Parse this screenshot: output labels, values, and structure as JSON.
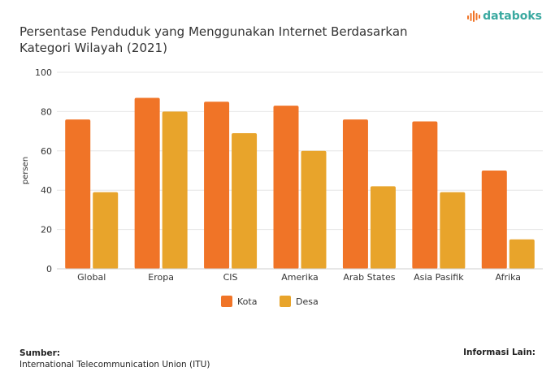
{
  "title": "Persentase Penduduk yang Menggunakan Internet Berdasarkan Kategori Wilayah (2021)",
  "logo": {
    "text": "databoks",
    "icon": "databoks-logo-icon",
    "color": "#3aa9a0"
  },
  "chart_data": {
    "type": "bar",
    "categories": [
      "Global",
      "Eropa",
      "CIS",
      "Amerika",
      "Arab States",
      "Asia Pasifik",
      "Afrika"
    ],
    "series": [
      {
        "name": "Kota",
        "values": [
          76,
          87,
          85,
          83,
          76,
          75,
          50
        ],
        "color": "#f07427"
      },
      {
        "name": "Desa",
        "values": [
          39,
          80,
          69,
          60,
          42,
          39,
          15
        ],
        "color": "#e8a42b"
      }
    ],
    "xlabel": "",
    "ylabel": "persen",
    "ylim": [
      0,
      100
    ],
    "yticks": [
      0,
      20,
      40,
      60,
      80,
      100
    ],
    "grid": true,
    "legend_position": "bottom-center"
  },
  "footer": {
    "source_label": "Sumber:",
    "source_text": "International Telecommunication Union (ITU)",
    "info_label": "Informasi Lain:"
  }
}
